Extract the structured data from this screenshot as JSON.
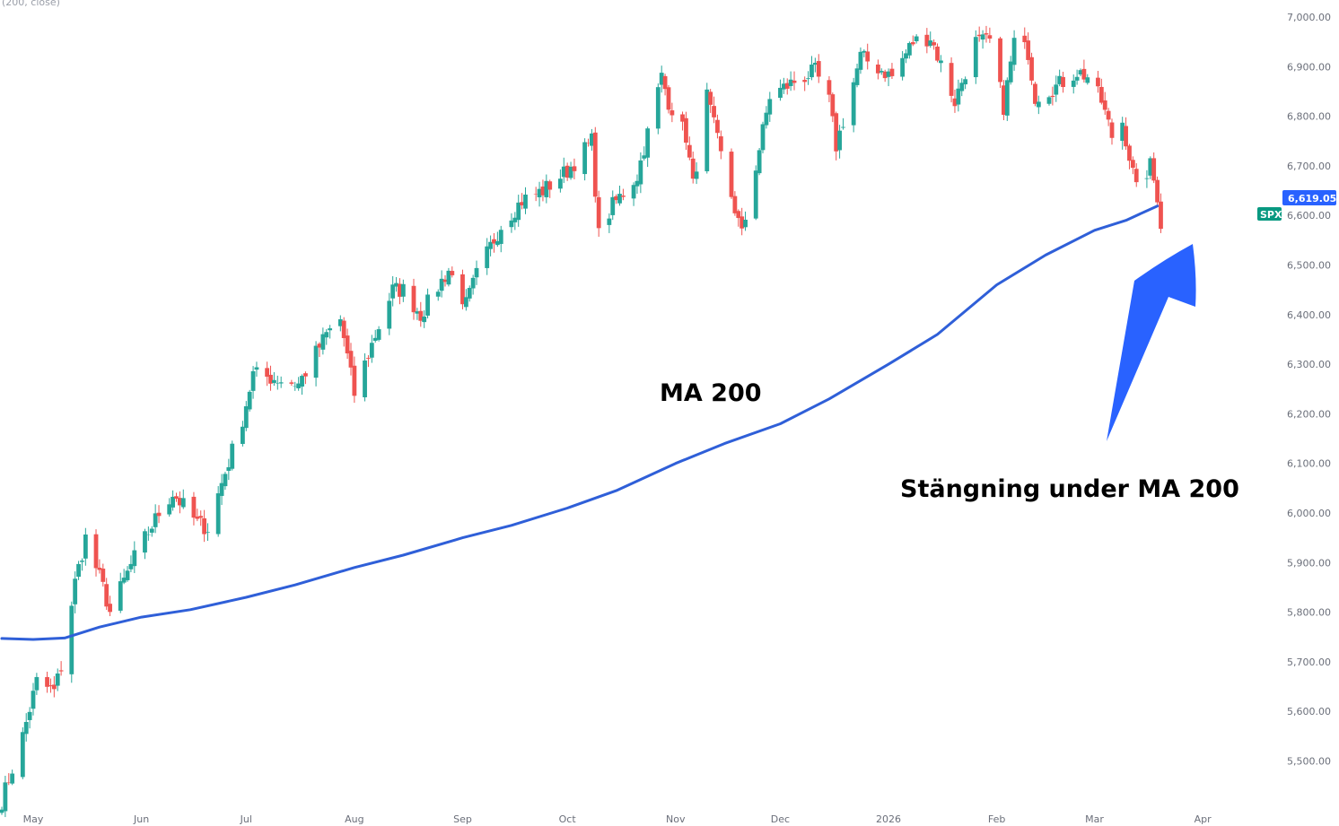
{
  "indicator_label": "(200, close)",
  "colors": {
    "up": "#26a69a",
    "down": "#ef5350",
    "ma": "#2f5fd8",
    "arrow": "#2962ff",
    "price_badge": "#2962ff",
    "symbol_badge": "#089981"
  },
  "price_badge": {
    "value": 6619.05,
    "text": "6,619.05"
  },
  "symbol_badge": {
    "text": "SPX"
  },
  "annotations": [
    {
      "id": "ma-label",
      "text": "MA 200"
    },
    {
      "id": "close-label",
      "text": "Stängning under MA 200"
    }
  ],
  "chart_data": {
    "type": "candlestick",
    "title": "",
    "y_range": [
      5420,
      7000
    ],
    "y_ticks": [
      {
        "value": 7000,
        "label": "7,000.00"
      },
      {
        "value": 6900,
        "label": "6,900.00"
      },
      {
        "value": 6800,
        "label": "6,800.00"
      },
      {
        "value": 6700,
        "label": "6,700.00"
      },
      {
        "value": 6600,
        "label": "6,600.00"
      },
      {
        "value": 6500,
        "label": "6,500.00"
      },
      {
        "value": 6400,
        "label": "6,400.00"
      },
      {
        "value": 6300,
        "label": "6,300.00"
      },
      {
        "value": 6200,
        "label": "6,200.00"
      },
      {
        "value": 6100,
        "label": "6,100.00"
      },
      {
        "value": 6000,
        "label": "6,000.00"
      },
      {
        "value": 5900,
        "label": "5,900.00"
      },
      {
        "value": 5800,
        "label": "5,800.00"
      },
      {
        "value": 5700,
        "label": "5,700.00"
      },
      {
        "value": 5600,
        "label": "5,600.00"
      },
      {
        "value": 5500,
        "label": "5,500.00"
      }
    ],
    "x_ticks": [
      {
        "label": "May",
        "date": "2025-05-01"
      },
      {
        "label": "Jun",
        "date": "2025-06-01"
      },
      {
        "label": "Jul",
        "date": "2025-07-01"
      },
      {
        "label": "Aug",
        "date": "2025-08-01"
      },
      {
        "label": "Sep",
        "date": "2025-09-01"
      },
      {
        "label": "Oct",
        "date": "2025-10-01"
      },
      {
        "label": "Nov",
        "date": "2025-11-01"
      },
      {
        "label": "Dec",
        "date": "2025-12-01"
      },
      {
        "label": "2026",
        "date": "2026-01-01"
      },
      {
        "label": "Feb",
        "date": "2026-02-01"
      },
      {
        "label": "Mar",
        "date": "2026-03-01"
      },
      {
        "label": "Apr",
        "date": "2026-04-01"
      }
    ],
    "price_path": [
      [
        "2025-04-22",
        5420
      ],
      [
        "2025-04-28",
        5550
      ],
      [
        "2025-05-02",
        5660
      ],
      [
        "2025-05-07",
        5640
      ],
      [
        "2025-05-09",
        5690
      ],
      [
        "2025-05-13",
        5860
      ],
      [
        "2025-05-16",
        5950
      ],
      [
        "2025-05-21",
        5850
      ],
      [
        "2025-05-23",
        5800
      ],
      [
        "2025-05-30",
        5910
      ],
      [
        "2025-06-06",
        6000
      ],
      [
        "2025-06-10",
        6040
      ],
      [
        "2025-06-17",
        5980
      ],
      [
        "2025-06-20",
        5970
      ],
      [
        "2025-06-24",
        6060
      ],
      [
        "2025-06-30",
        6190
      ],
      [
        "2025-07-03",
        6280
      ],
      [
        "2025-07-10",
        6270
      ],
      [
        "2025-07-16",
        6260
      ],
      [
        "2025-07-24",
        6360
      ],
      [
        "2025-07-28",
        6390
      ],
      [
        "2025-08-01",
        6240
      ],
      [
        "2025-08-06",
        6340
      ],
      [
        "2025-08-12",
        6450
      ],
      [
        "2025-08-15",
        6450
      ],
      [
        "2025-08-20",
        6400
      ],
      [
        "2025-08-28",
        6490
      ],
      [
        "2025-09-02",
        6420
      ],
      [
        "2025-09-05",
        6480
      ],
      [
        "2025-09-12",
        6580
      ],
      [
        "2025-09-18",
        6630
      ],
      [
        "2025-09-24",
        6650
      ],
      [
        "2025-10-01",
        6690
      ],
      [
        "2025-10-08",
        6750
      ],
      [
        "2025-10-10",
        6560
      ],
      [
        "2025-10-14",
        6620
      ],
      [
        "2025-10-21",
        6680
      ],
      [
        "2025-10-28",
        6880
      ],
      [
        "2025-10-30",
        6830
      ],
      [
        "2025-11-04",
        6760
      ],
      [
        "2025-11-06",
        6660
      ],
      [
        "2025-11-10",
        6840
      ],
      [
        "2025-11-14",
        6720
      ],
      [
        "2025-11-20",
        6560
      ],
      [
        "2025-11-24",
        6700
      ],
      [
        "2025-11-28",
        6840
      ],
      [
        "2025-12-05",
        6870
      ],
      [
        "2025-12-11",
        6890
      ],
      [
        "2025-12-15",
        6830
      ],
      [
        "2025-12-17",
        6740
      ],
      [
        "2025-12-24",
        6920
      ],
      [
        "2026-01-02",
        6880
      ],
      [
        "2026-01-08",
        6950
      ],
      [
        "2026-01-13",
        6960
      ],
      [
        "2026-01-20",
        6830
      ],
      [
        "2026-01-26",
        6950
      ],
      [
        "2026-01-30",
        6950
      ],
      [
        "2026-02-03",
        6820
      ],
      [
        "2026-02-06",
        6950
      ],
      [
        "2026-02-10",
        6930
      ],
      [
        "2026-02-12",
        6840
      ],
      [
        "2026-02-18",
        6860
      ],
      [
        "2026-02-24",
        6890
      ],
      [
        "2026-02-27",
        6880
      ],
      [
        "2026-03-03",
        6830
      ],
      [
        "2026-03-06",
        6760
      ],
      [
        "2026-03-09",
        6790
      ],
      [
        "2026-03-13",
        6650
      ],
      [
        "2026-03-17",
        6700
      ],
      [
        "2026-03-19",
        6640
      ],
      [
        "2026-03-20",
        6570
      ]
    ],
    "ma200": [
      [
        "2025-04-22",
        5747
      ],
      [
        "2025-05-01",
        5745
      ],
      [
        "2025-05-10",
        5748
      ],
      [
        "2025-05-20",
        5770
      ],
      [
        "2025-06-01",
        5790
      ],
      [
        "2025-06-15",
        5805
      ],
      [
        "2025-07-01",
        5830
      ],
      [
        "2025-07-15",
        5855
      ],
      [
        "2025-08-01",
        5890
      ],
      [
        "2025-08-15",
        5915
      ],
      [
        "2025-09-01",
        5950
      ],
      [
        "2025-09-15",
        5975
      ],
      [
        "2025-10-01",
        6010
      ],
      [
        "2025-10-15",
        6045
      ],
      [
        "2025-11-01",
        6100
      ],
      [
        "2025-11-15",
        6140
      ],
      [
        "2025-12-01",
        6180
      ],
      [
        "2025-12-15",
        6230
      ],
      [
        "2026-01-01",
        6300
      ],
      [
        "2026-01-15",
        6360
      ],
      [
        "2026-02-01",
        6460
      ],
      [
        "2026-02-15",
        6520
      ],
      [
        "2026-03-01",
        6570
      ],
      [
        "2026-03-10",
        6590
      ],
      [
        "2026-03-19",
        6619.05
      ]
    ]
  }
}
